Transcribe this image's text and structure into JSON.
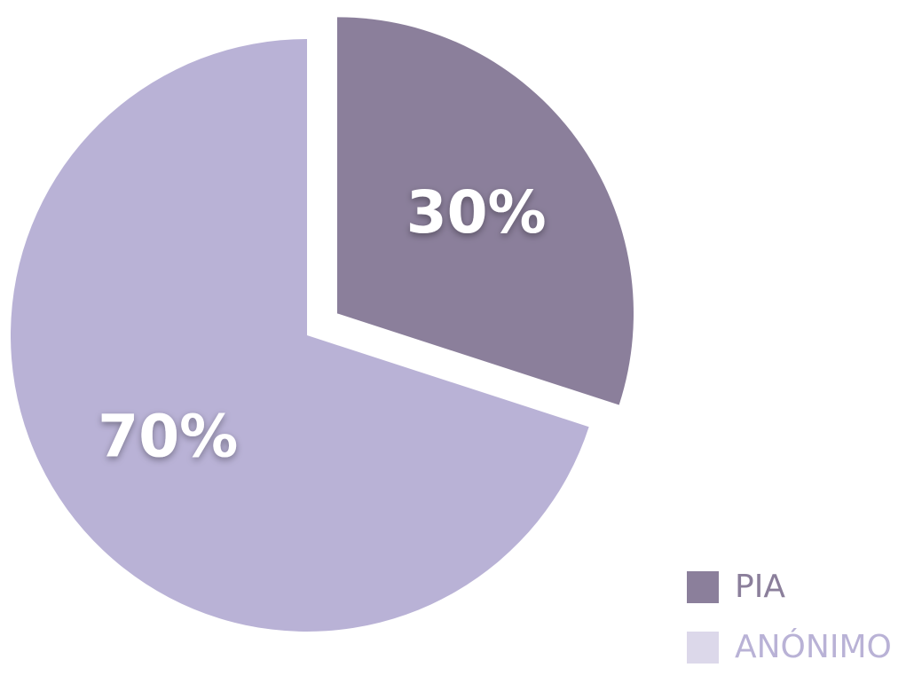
{
  "chart_data": {
    "type": "pie",
    "slices": [
      {
        "name": "PIA",
        "value": 30,
        "label": "30%",
        "color": "#8b7f9b",
        "exploded": true
      },
      {
        "name": "ANÓNIMO",
        "value": 70,
        "label": "70%",
        "color": "#b9b2d6",
        "exploded": false
      }
    ],
    "legend": {
      "position": "bottom-right",
      "items": [
        {
          "label": "PIA",
          "color": "#8b7f9b",
          "text_color": "#8b7f9b"
        },
        {
          "label": "ANÓNIMO",
          "color": "#dcd8ea",
          "text_color": "#b9b2d6"
        }
      ]
    }
  }
}
